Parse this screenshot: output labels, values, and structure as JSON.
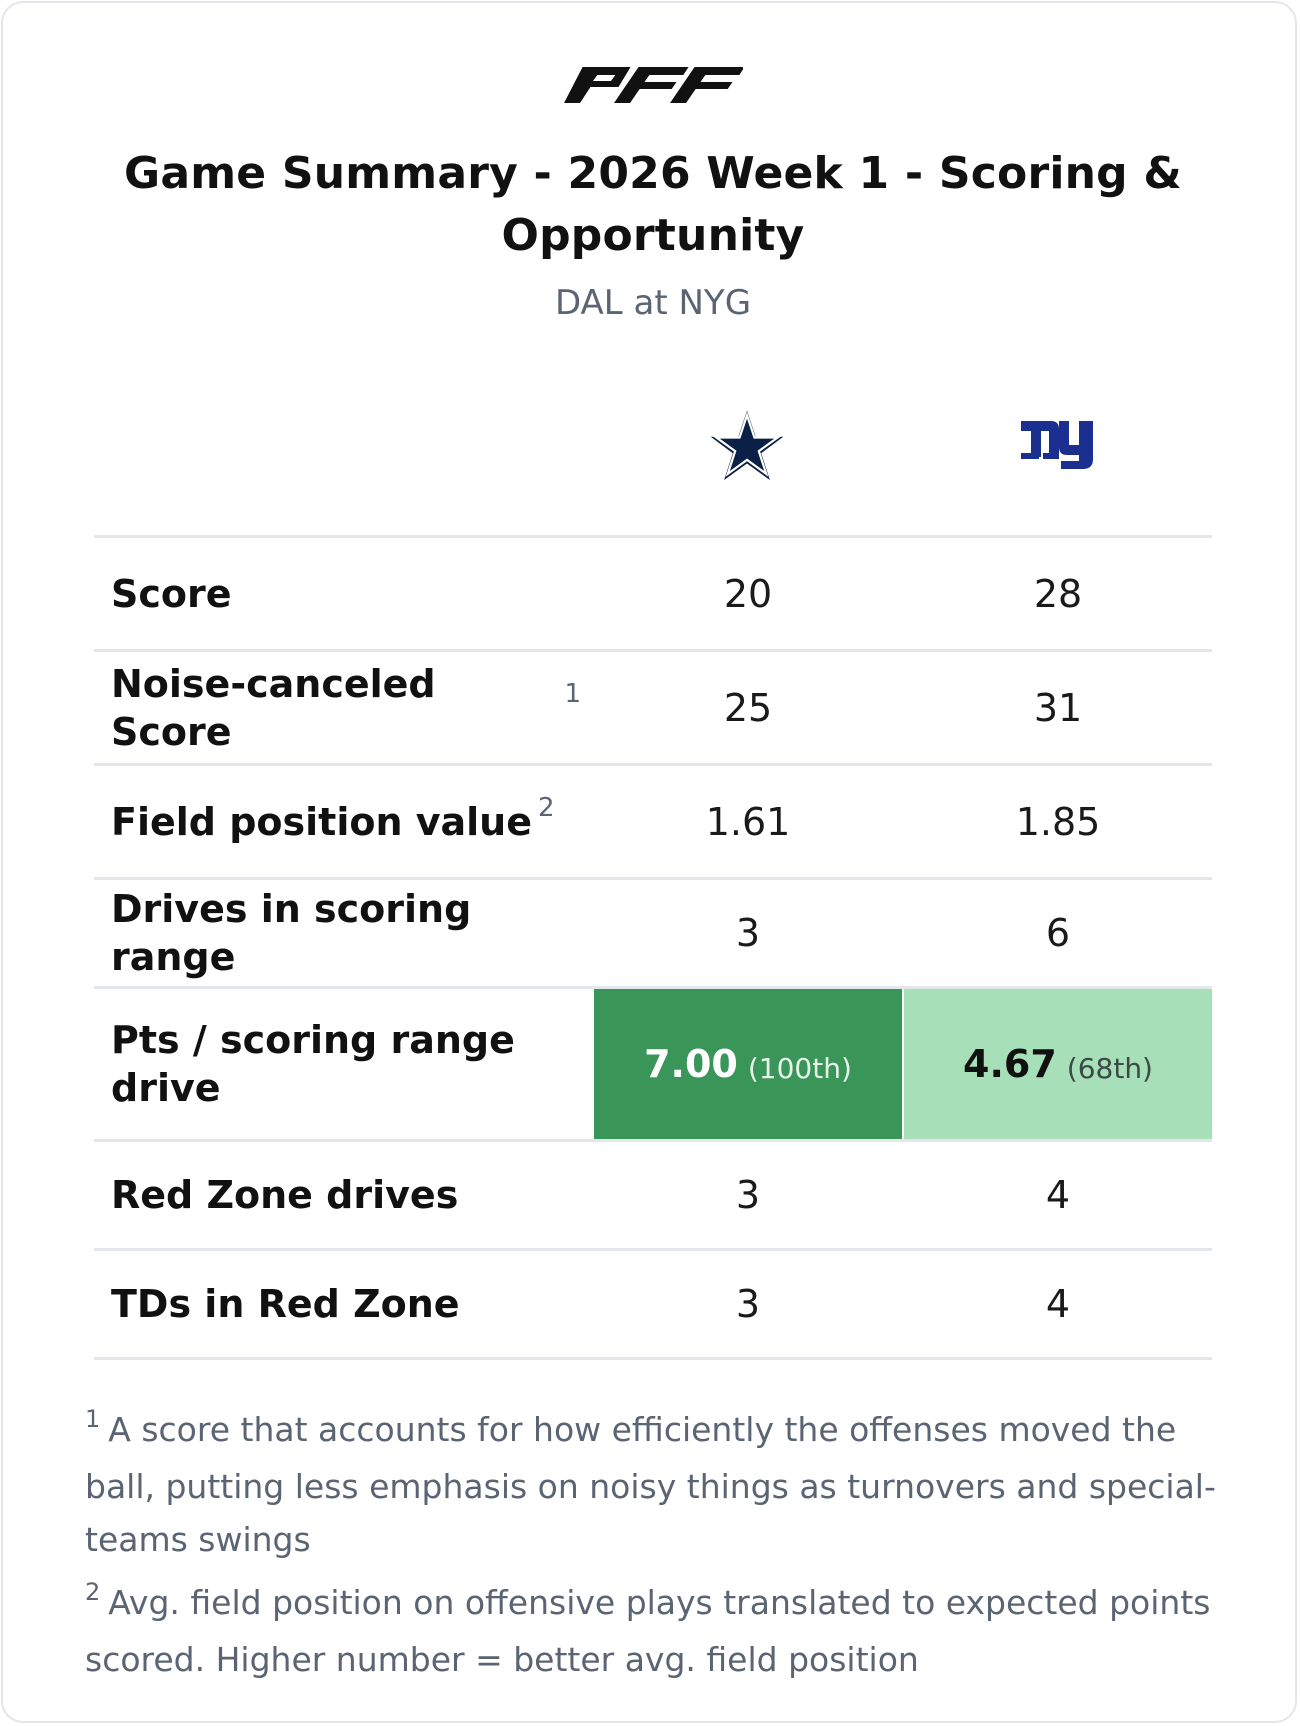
{
  "header": {
    "logo_text": "PFF",
    "title": "Game Summary - 2026 Week 1 - Scoring & Opportunity",
    "subtitle": "DAL at NYG"
  },
  "teams": {
    "away": {
      "logo": "star-icon",
      "color": "#0b2046"
    },
    "home": {
      "logo": "ny-logo",
      "color": "#1b2f91"
    }
  },
  "rows": [
    {
      "label": "Score",
      "sup": "",
      "dal": "20",
      "nyg": "28"
    },
    {
      "label": "Noise-canceled Score",
      "sup": "1",
      "dal": "25",
      "nyg": "31"
    },
    {
      "label": "Field position value",
      "sup": "2",
      "dal": "1.61",
      "nyg": "1.85"
    },
    {
      "label": "Drives in scoring range",
      "sup": "",
      "dal": "3",
      "nyg": "6"
    },
    {
      "label": "Pts / scoring range drive",
      "sup": "",
      "dal": "7.00",
      "dal_pct": "(100th)",
      "nyg": "4.67",
      "nyg_pct": "(68th)"
    },
    {
      "label": "Red Zone drives",
      "sup": "",
      "dal": "3",
      "nyg": "4"
    },
    {
      "label": "TDs in Red Zone",
      "sup": "",
      "dal": "3",
      "nyg": "4"
    }
  ],
  "highlight_colors": {
    "strong": "#3a9558",
    "light": "#a7dfb8"
  },
  "footnotes": [
    {
      "num": "1",
      "text": "A score that accounts for how efficiently the offenses moved the ball, putting less emphasis on noisy things as turnovers and special-teams swings"
    },
    {
      "num": "2",
      "text": "Avg. field position on offensive plays translated to expected points scored. Higher number = better avg. field position"
    }
  ]
}
